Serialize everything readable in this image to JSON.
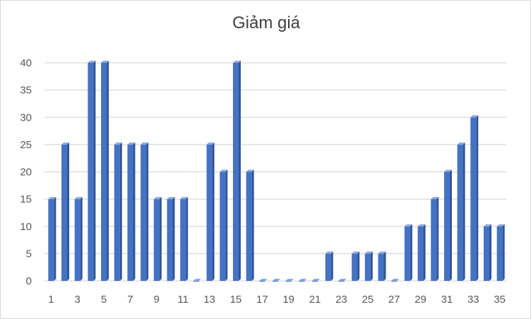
{
  "chart_data": {
    "type": "bar",
    "title": "Giảm giá",
    "xlabel": "",
    "ylabel": "",
    "categories": [
      1,
      2,
      3,
      4,
      5,
      6,
      7,
      8,
      9,
      10,
      11,
      12,
      13,
      14,
      15,
      16,
      17,
      18,
      19,
      20,
      21,
      22,
      23,
      24,
      25,
      26,
      27,
      28,
      29,
      30,
      31,
      32,
      33,
      34,
      35
    ],
    "x_tick_labels": [
      "1",
      "3",
      "5",
      "7",
      "9",
      "11",
      "13",
      "15",
      "17",
      "19",
      "21",
      "23",
      "25",
      "27",
      "29",
      "31",
      "33",
      "35"
    ],
    "y_tick_labels": [
      "0",
      "5",
      "10",
      "15",
      "20",
      "25",
      "30",
      "35",
      "40"
    ],
    "values": [
      15,
      25,
      15,
      40,
      40,
      25,
      25,
      25,
      15,
      15,
      15,
      0,
      25,
      20,
      40,
      20,
      0,
      0,
      0,
      0,
      0,
      5,
      0,
      5,
      5,
      5,
      0,
      10,
      10,
      15,
      20,
      25,
      30,
      10,
      10
    ],
    "ylim": [
      0,
      40
    ],
    "grid": true,
    "legend": "none",
    "bar_color": "#4472c4",
    "bar_side_color": "#2f5597"
  }
}
